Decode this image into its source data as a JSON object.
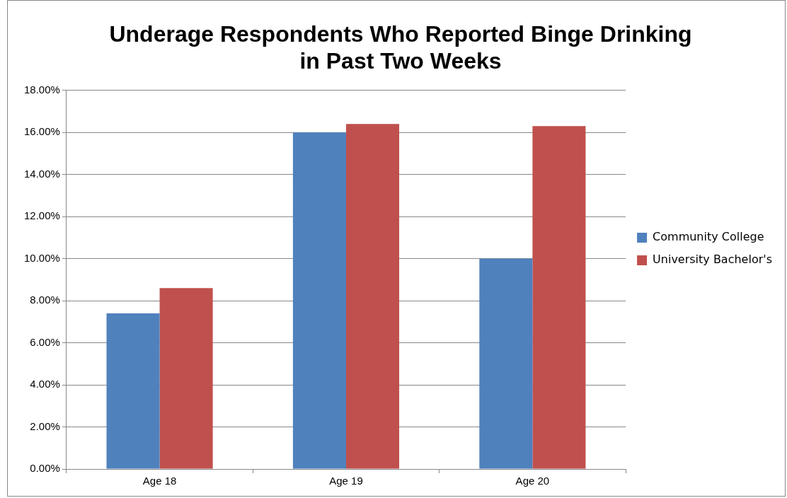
{
  "chart_data": {
    "type": "bar",
    "title": "Underage Respondents Who Reported Binge Drinking in Past Two Weeks",
    "categories": [
      "Age 18",
      "Age 19",
      "Age 20"
    ],
    "series": [
      {
        "name": "Community College",
        "color": "#4f81bd",
        "values": [
          7.4,
          16.0,
          10.0
        ]
      },
      {
        "name": "University Bachelor's",
        "color": "#c0504d",
        "values": [
          8.6,
          16.4,
          16.3
        ]
      }
    ],
    "ylim": [
      0,
      18
    ],
    "yticks": [
      {
        "value": 0,
        "label": "0.00%"
      },
      {
        "value": 2,
        "label": "2.00%"
      },
      {
        "value": 4,
        "label": "4.00%"
      },
      {
        "value": 6,
        "label": "6.00%"
      },
      {
        "value": 8,
        "label": "8.00%"
      },
      {
        "value": 10,
        "label": "10.00%"
      },
      {
        "value": 12,
        "label": "12.00%"
      },
      {
        "value": 14,
        "label": "14.00%"
      },
      {
        "value": 16,
        "label": "16.00%"
      },
      {
        "value": 18,
        "label": "18.00%"
      }
    ],
    "grid": "y",
    "legend": "right"
  }
}
